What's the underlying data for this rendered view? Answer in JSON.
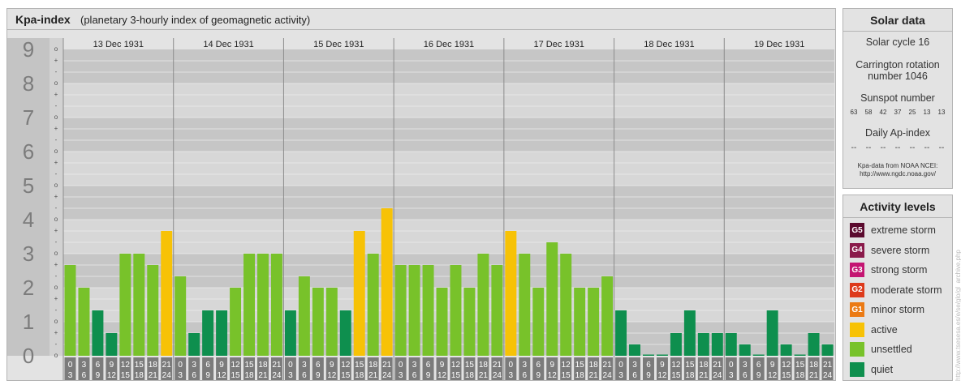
{
  "header": {
    "title": "Kpa-index",
    "subtitle": "(planetary 3-hourly index of geomagnetic activity)"
  },
  "chart_data": {
    "type": "bar",
    "ylim": [
      0,
      9
    ],
    "y_ticks": [
      "0",
      "1",
      "2",
      "3",
      "4",
      "5",
      "6",
      "7",
      "8",
      "9"
    ],
    "sub_ticks": [
      "o",
      "-",
      "+"
    ],
    "days": [
      "13 Dec 1931",
      "14 Dec 1931",
      "15 Dec 1931",
      "16 Dec 1931",
      "17 Dec 1931",
      "18 Dec 1931",
      "19 Dec 1931"
    ],
    "interval_starts": [
      "0",
      "3",
      "6",
      "9",
      "12",
      "15",
      "18",
      "21"
    ],
    "interval_ends": [
      "3",
      "6",
      "9",
      "12",
      "15",
      "18",
      "21",
      "24"
    ],
    "values": [
      2.667,
      2.0,
      1.333,
      0.667,
      3.0,
      3.0,
      2.667,
      3.667,
      2.333,
      0.667,
      1.333,
      1.333,
      2.0,
      3.0,
      3.0,
      3.0,
      1.333,
      2.333,
      2.0,
      2.0,
      1.333,
      3.667,
      3.0,
      4.333,
      2.667,
      2.667,
      2.667,
      2.0,
      2.667,
      2.0,
      3.0,
      2.667,
      3.667,
      3.0,
      2.0,
      3.333,
      3.0,
      2.0,
      2.0,
      2.333,
      1.333,
      0.333,
      0.0,
      0.0,
      0.667,
      1.333,
      0.667,
      0.667,
      0.667,
      0.333,
      0.0,
      1.333,
      0.333,
      0.0,
      0.667,
      0.333
    ],
    "level_colors": {
      "quiet": "#0e8f4e",
      "unsettled": "#78c22a",
      "active": "#f7c206"
    }
  },
  "solar": {
    "title": "Solar data",
    "cycle": "Solar cycle 16",
    "carrington_1": "Carrington rotation",
    "carrington_2": "number 1046",
    "sunspot_label": "Sunspot number",
    "sunspots": [
      "63",
      "58",
      "42",
      "37",
      "25",
      "13",
      "13"
    ],
    "ap_label": "Daily Ap-index",
    "ap_values": [
      "--",
      "--",
      "--",
      "--",
      "--",
      "--",
      "--"
    ],
    "source_1": "Kpa-data from NOAA NCEI:",
    "source_2": "http://www.ngdc.noaa.gov/"
  },
  "activity": {
    "title": "Activity levels",
    "items": [
      {
        "badge": "G5",
        "label": "extreme storm",
        "color": "#5b0a2e"
      },
      {
        "badge": "G4",
        "label": "severe storm",
        "color": "#8a1a4a"
      },
      {
        "badge": "G3",
        "label": "strong storm",
        "color": "#c41572"
      },
      {
        "badge": "G2",
        "label": "moderate storm",
        "color": "#dd3a1b"
      },
      {
        "badge": "G1",
        "label": "minor storm",
        "color": "#eb7a14"
      },
      {
        "badge": "",
        "label": "active",
        "color": "#f7c206"
      },
      {
        "badge": "",
        "label": "unsettled",
        "color": "#78c22a"
      },
      {
        "badge": "",
        "label": "quiet",
        "color": "#0e8f4e"
      }
    ]
  },
  "watermark": "http://www.tsesesa.es/e/se/glo/gl_archive.php"
}
